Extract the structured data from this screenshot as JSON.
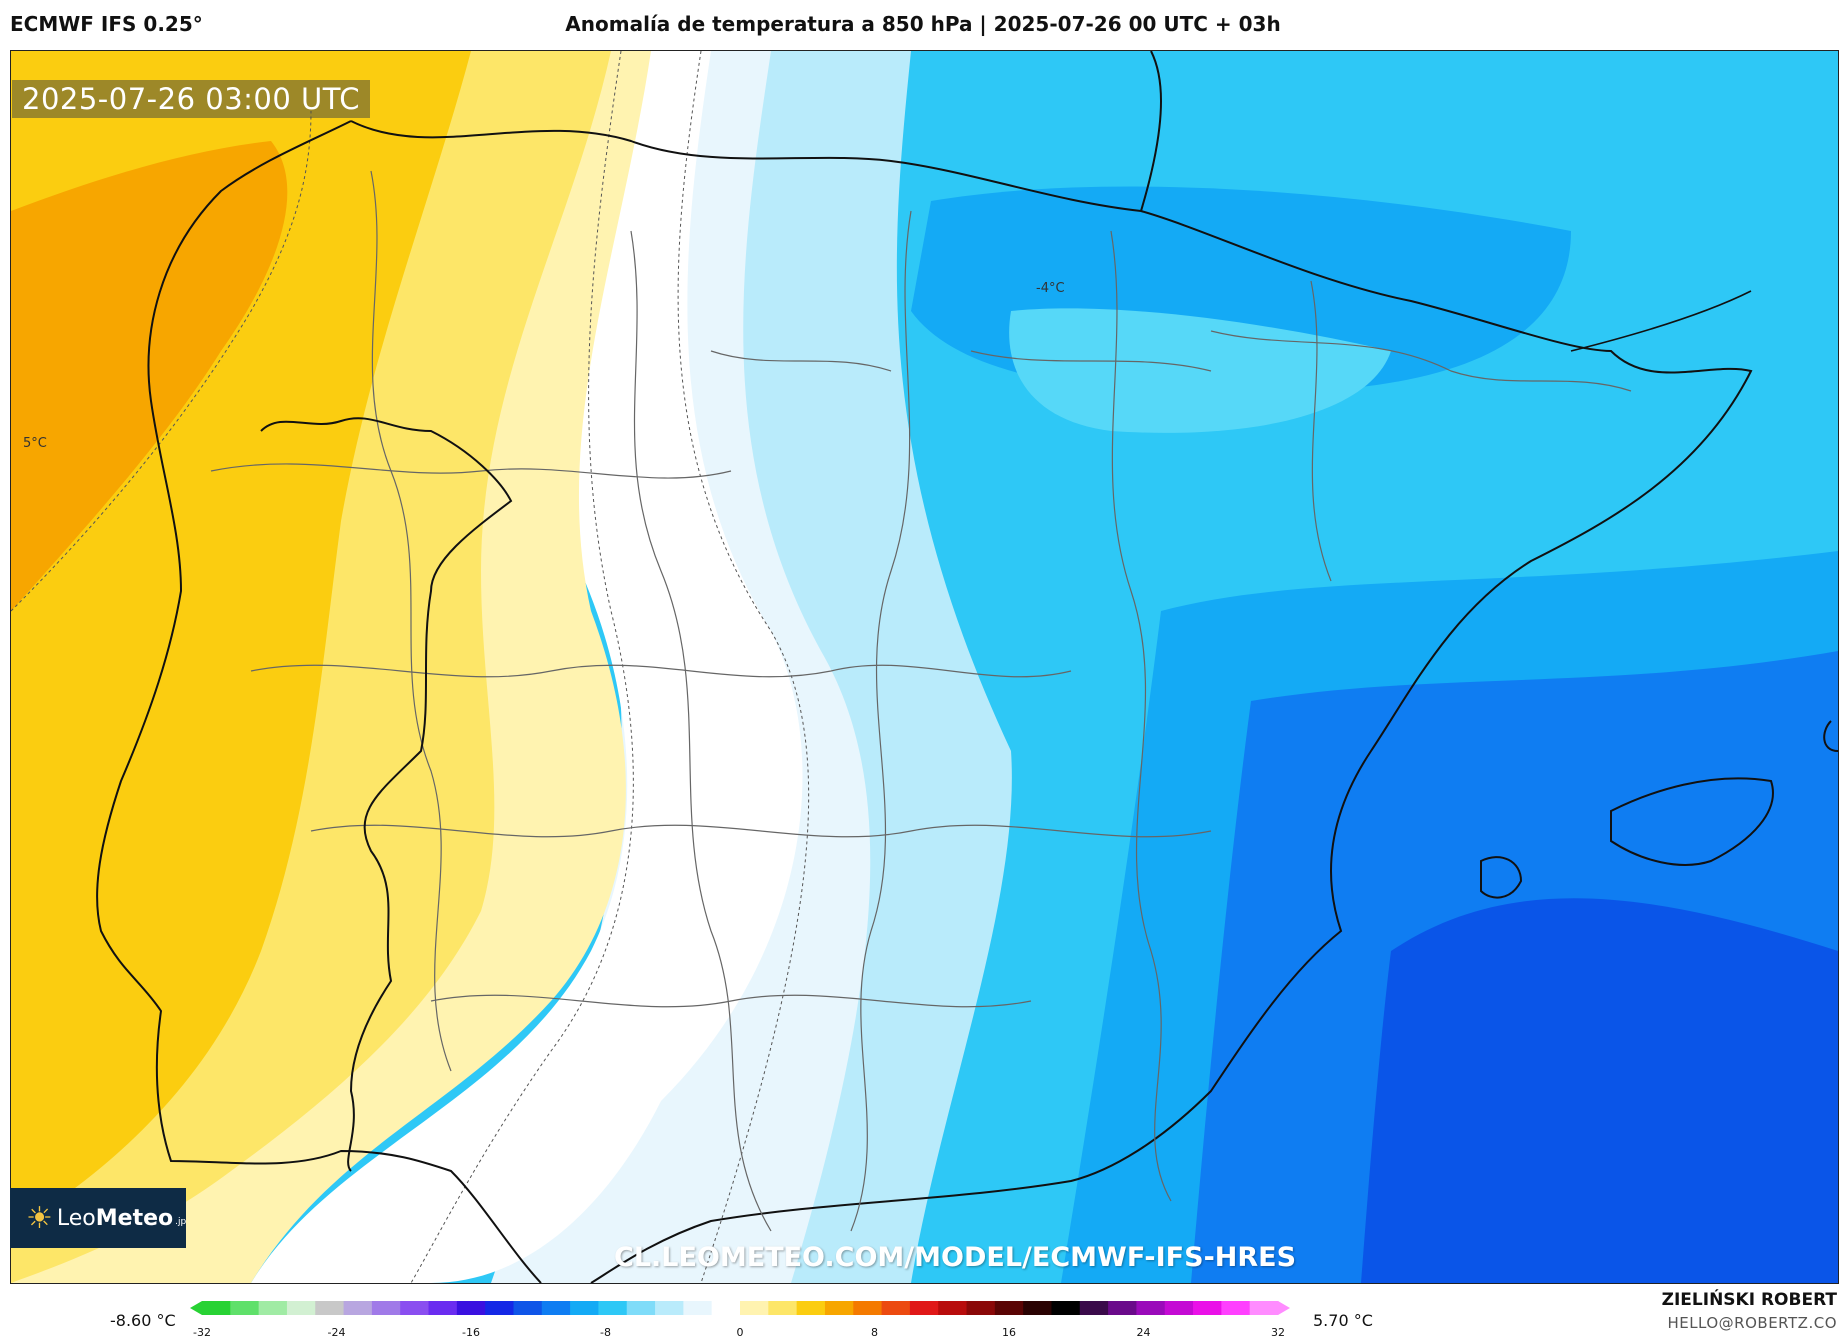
{
  "header": {
    "model": "ECMWF IFS 0.25°",
    "title": "Anomalía de temperatura a 850 hPa | 2025-07-26 00 UTC + 03h"
  },
  "map": {
    "timestamp": "2025-07-26 03:00 UTC",
    "contour_labels": [
      {
        "text": "5°C"
      },
      {
        "text": "-4°C"
      }
    ],
    "logo": {
      "text_regular": "Leo",
      "text_bold": "Meteo",
      "suffix": ".jp"
    },
    "watermark_url": "CL.LEOMETEO.COM/MODEL/ECMWF-IFS-HRES",
    "colors": {
      "warm_dark": "#f7a600",
      "warm": "#fbcd10",
      "warm_light": "#fde668",
      "warm_pale": "#fff3b0",
      "neutral": "#ffffff",
      "cool_pale": "#e8f6fd",
      "cool_light": "#b9ebfb",
      "cool": "#2ec8f6",
      "cool_mid": "#14aaf5",
      "cool_dark": "#0f7df2",
      "cool_deepest": "#0a55e8"
    }
  },
  "colorbar": {
    "min_label": "-8.60 °C",
    "max_label": "5.70 °C",
    "ticks": [
      "-32",
      "-24",
      "-16",
      "-8",
      "0",
      "8",
      "16",
      "24",
      "32"
    ],
    "colors": [
      "#28d234",
      "#5fe06a",
      "#a0eba4",
      "#d2f0d2",
      "#c8c8c8",
      "#b8a6e0",
      "#a07ae8",
      "#8a4ef0",
      "#6a2cf0",
      "#3a10e0",
      "#1428e6",
      "#0f55e8",
      "#0f7df2",
      "#14aaf5",
      "#2ec8f6",
      "#7fdcf9",
      "#b9ebfb",
      "#e8f6fd",
      "#ffffff",
      "#fff3b0",
      "#fde668",
      "#fbcd10",
      "#f7a600",
      "#f47a00",
      "#ec4a10",
      "#e01818",
      "#b80c0c",
      "#8a0808",
      "#5a0404",
      "#2a0202",
      "#000000",
      "#3a0a4a",
      "#6a0a8a",
      "#9a0aba",
      "#c40ad4",
      "#ea10e8",
      "#ff40ff",
      "#ff8cff"
    ]
  },
  "footer": {
    "author": "ZIELIŃSKI ROBERT",
    "email": "HELLO@ROBERTZ.CO"
  }
}
